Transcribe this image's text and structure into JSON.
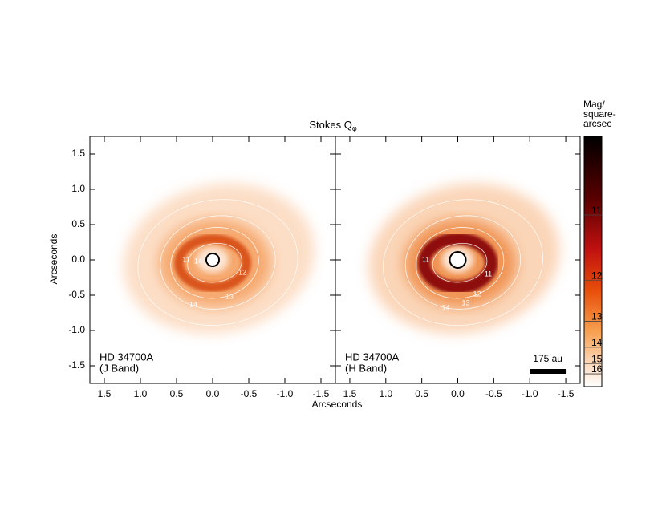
{
  "title": "Stokes Q",
  "title_subscript": "φ",
  "x_label": "Arcseconds",
  "y_label": "Arcseconds",
  "chart_data": [
    {
      "type": "image",
      "annotation": [
        "HD 34700A",
        "(J Band)"
      ],
      "xlim": [
        1.7,
        -1.7
      ],
      "ylim": [
        -1.75,
        1.75
      ],
      "xticks": [
        1.5,
        {
          "value": 1,
          "label": "1.0"
        },
        0.5,
        {
          "value": 0,
          "label": "0.0"
        },
        -0.5,
        {
          "value": -1,
          "label": "-1.0"
        },
        -1.5
      ],
      "yticks": [
        -1.5,
        {
          "value": -1,
          "label": "-1.0"
        },
        -0.5,
        {
          "value": 0,
          "label": "0.0"
        },
        0.5,
        {
          "value": 1,
          "label": "1.0"
        },
        1.5
      ],
      "contour_labels": [
        "11",
        "14",
        "12",
        "13",
        "14"
      ]
    },
    {
      "type": "image",
      "annotation": [
        "HD 34700A",
        "(H Band)"
      ],
      "xlim": [
        1.7,
        -1.7
      ],
      "ylim": [
        -1.75,
        1.75
      ],
      "xticks": [
        1.5,
        {
          "value": 1,
          "label": "1.0"
        },
        0.5,
        {
          "value": 0,
          "label": "0.0"
        },
        -0.5,
        {
          "value": -1,
          "label": "-1.0"
        },
        -1.5
      ],
      "yticks": [
        -1.5,
        {
          "value": -1,
          "label": "-1.0"
        },
        -0.5,
        {
          "value": 0,
          "label": "0.0"
        },
        0.5,
        {
          "value": 1,
          "label": "1.0"
        },
        1.5
      ],
      "contour_labels": [
        "11",
        "11",
        "12",
        "13",
        "14"
      ],
      "scalebar": {
        "label": "175 au",
        "length": 0.5
      }
    },
    {
      "type": "colorbar",
      "title_lines": [
        "Mag/",
        "square-",
        "arcsec"
      ],
      "lim": [
        18.8,
        10.2
      ],
      "scale": "sqrt-flux",
      "ticks": [
        11,
        12,
        13,
        14,
        15,
        16
      ]
    }
  ]
}
